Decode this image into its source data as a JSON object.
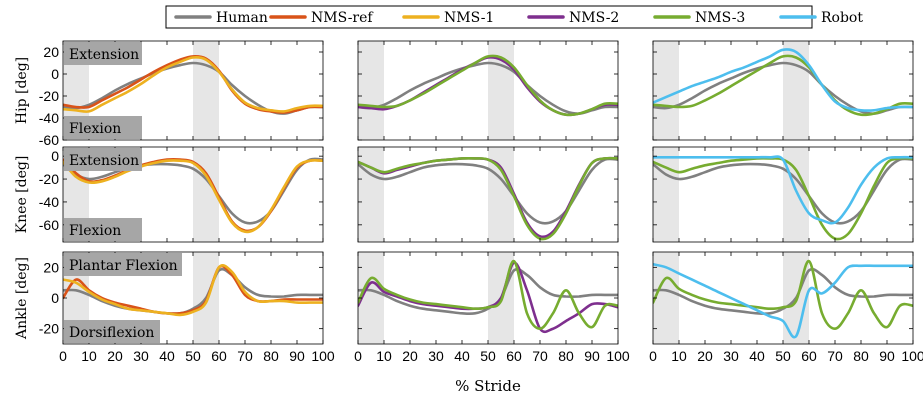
{
  "chart_data": {
    "type": "line",
    "xlabel": "% Stride",
    "x_ticks": [
      0,
      10,
      20,
      30,
      40,
      50,
      60,
      70,
      80,
      90,
      100
    ],
    "shaded_regions": [
      [
        0,
        10
      ],
      [
        50,
        60
      ]
    ],
    "legend": {
      "placement": "top-center",
      "entries": [
        {
          "name": "Human",
          "color": "#808080"
        },
        {
          "name": "NMS-ref",
          "color": "#D95319"
        },
        {
          "name": "NMS-1",
          "color": "#EDB120"
        },
        {
          "name": "NMS-2",
          "color": "#7E2F8E"
        },
        {
          "name": "NMS-3",
          "color": "#77AC30"
        },
        {
          "name": "Robot",
          "color": "#4DBEEE"
        }
      ]
    },
    "rows": [
      {
        "joint": "Hip",
        "ylabel": "Hip [deg]",
        "ylim": [
          -60,
          30
        ],
        "yticks": [
          20,
          0,
          -20,
          -40,
          -60
        ],
        "label_top": "Extension",
        "label_bottom": "Flexion"
      },
      {
        "joint": "Knee",
        "ylabel": "Knee [deg]",
        "ylim": [
          -75,
          8
        ],
        "yticks": [
          0,
          -20,
          -40,
          -60
        ],
        "label_top": "Extension",
        "label_bottom": "Flexion"
      },
      {
        "joint": "Ankle",
        "ylabel": "Ankle [deg]",
        "ylim": [
          -30,
          30
        ],
        "yticks": [
          20,
          0,
          -20
        ],
        "label_top": "Plantar Flexion",
        "label_bottom": "Dorsiflexion"
      }
    ],
    "x": [
      0,
      5,
      10,
      15,
      20,
      25,
      30,
      35,
      40,
      45,
      50,
      55,
      60,
      65,
      70,
      75,
      80,
      85,
      90,
      95,
      100
    ],
    "panels": [
      {
        "row": 0,
        "col": 0,
        "series": [
          {
            "name": "Human",
            "values": [
              -30,
              -31,
              -28,
              -22,
              -15,
              -9,
              -4,
              1,
              5,
              8,
              10,
              8,
              2,
              -10,
              -20,
              -28,
              -34,
              -36,
              -33,
              -30,
              -30
            ]
          },
          {
            "name": "NMS-ref",
            "values": [
              -28,
              -30,
              -30,
              -24,
              -18,
              -12,
              -5,
              2,
              8,
              13,
              16,
              14,
              3,
              -15,
              -27,
              -32,
              -34,
              -35,
              -33,
              -30,
              -30
            ]
          },
          {
            "name": "NMS-1",
            "values": [
              -32,
              -33,
              -34,
              -28,
              -22,
              -16,
              -9,
              -1,
              6,
              11,
              15,
              13,
              2,
              -14,
              -26,
              -31,
              -33,
              -34,
              -31,
              -29,
              -29
            ]
          }
        ]
      },
      {
        "row": 0,
        "col": 1,
        "series": [
          {
            "name": "Human",
            "values": [
              -30,
              -31,
              -28,
              -22,
              -15,
              -9,
              -4,
              1,
              5,
              8,
              10,
              8,
              2,
              -10,
              -20,
              -28,
              -34,
              -36,
              -33,
              -30,
              -30
            ]
          },
          {
            "name": "NMS-2",
            "values": [
              -30,
              -31,
              -32,
              -29,
              -24,
              -17,
              -10,
              -3,
              4,
              10,
              15,
              13,
              4,
              -12,
              -25,
              -33,
              -37,
              -36,
              -32,
              -28,
              -28
            ]
          },
          {
            "name": "NMS-3",
            "values": [
              -28,
              -29,
              -30,
              -29,
              -24,
              -18,
              -11,
              -4,
              3,
              10,
              16,
              15,
              6,
              -10,
              -24,
              -33,
              -37,
              -36,
              -32,
              -27,
              -27
            ]
          }
        ]
      },
      {
        "row": 0,
        "col": 2,
        "series": [
          {
            "name": "Human",
            "values": [
              -30,
              -31,
              -28,
              -22,
              -15,
              -9,
              -4,
              1,
              5,
              8,
              10,
              8,
              2,
              -10,
              -20,
              -28,
              -34,
              -36,
              -33,
              -30,
              -30
            ]
          },
          {
            "name": "NMS-3",
            "values": [
              -28,
              -29,
              -30,
              -29,
              -24,
              -18,
              -11,
              -4,
              3,
              10,
              16,
              15,
              6,
              -10,
              -24,
              -33,
              -37,
              -36,
              -32,
              -27,
              -27
            ]
          },
          {
            "name": "Robot",
            "values": [
              -26,
              -21,
              -16,
              -11,
              -7,
              -3,
              2,
              6,
              11,
              16,
              22,
              20,
              8,
              -10,
              -25,
              -31,
              -33,
              -33,
              -31,
              -30,
              -30
            ]
          }
        ]
      },
      {
        "row": 1,
        "col": 0,
        "series": [
          {
            "name": "Human",
            "values": [
              -7,
              -16,
              -20,
              -18,
              -14,
              -10,
              -8,
              -7,
              -7,
              -8,
              -11,
              -20,
              -35,
              -50,
              -58,
              -57,
              -48,
              -30,
              -12,
              -3,
              -3
            ]
          },
          {
            "name": "NMS-ref",
            "values": [
              -3,
              -15,
              -22,
              -21,
              -17,
              -12,
              -8,
              -5,
              -3,
              -3,
              -5,
              -15,
              -36,
              -57,
              -65,
              -62,
              -48,
              -28,
              -10,
              -4,
              -4
            ]
          },
          {
            "name": "NMS-1",
            "values": [
              -5,
              -18,
              -23,
              -22,
              -18,
              -13,
              -9,
              -6,
              -4,
              -4,
              -6,
              -17,
              -38,
              -58,
              -66,
              -62,
              -47,
              -27,
              -9,
              -4,
              -4
            ]
          }
        ]
      },
      {
        "row": 1,
        "col": 1,
        "series": [
          {
            "name": "Human",
            "values": [
              -7,
              -16,
              -20,
              -18,
              -14,
              -10,
              -8,
              -7,
              -7,
              -8,
              -11,
              -20,
              -35,
              -50,
              -58,
              -57,
              -48,
              -30,
              -12,
              -3,
              -3
            ]
          },
          {
            "name": "NMS-2",
            "values": [
              -5,
              -10,
              -15,
              -12,
              -9,
              -6,
              -4,
              -3,
              -2,
              -2,
              -3,
              -10,
              -33,
              -58,
              -70,
              -66,
              -48,
              -25,
              -6,
              -2,
              -2
            ]
          },
          {
            "name": "NMS-3",
            "values": [
              -5,
              -10,
              -14,
              -11,
              -8,
              -6,
              -4,
              -3,
              -2,
              -2,
              -3,
              -12,
              -35,
              -60,
              -72,
              -68,
              -50,
              -26,
              -6,
              -2,
              -2
            ]
          }
        ]
      },
      {
        "row": 1,
        "col": 2,
        "series": [
          {
            "name": "Human",
            "values": [
              -7,
              -16,
              -20,
              -18,
              -14,
              -10,
              -8,
              -7,
              -7,
              -8,
              -11,
              -20,
              -35,
              -50,
              -58,
              -57,
              -48,
              -30,
              -12,
              -3,
              -3
            ]
          },
          {
            "name": "NMS-3",
            "values": [
              -5,
              -10,
              -14,
              -11,
              -8,
              -6,
              -4,
              -3,
              -2,
              -2,
              -3,
              -12,
              -35,
              -60,
              -72,
              -68,
              -50,
              -26,
              -6,
              -2,
              -2
            ]
          },
          {
            "name": "Robot",
            "values": [
              -1,
              -1,
              -1,
              -1,
              -1,
              -1,
              -1,
              -1,
              -1,
              -1,
              -3,
              -30,
              -50,
              -56,
              -58,
              -45,
              -25,
              -10,
              -2,
              -1,
              -1
            ]
          }
        ]
      },
      {
        "row": 2,
        "col": 0,
        "series": [
          {
            "name": "Human",
            "values": [
              5,
              5,
              2,
              -2,
              -5,
              -7,
              -8,
              -9,
              -10,
              -10,
              -7,
              0,
              18,
              15,
              7,
              2,
              1,
              1,
              2,
              2,
              2
            ]
          },
          {
            "name": "NMS-ref",
            "values": [
              0,
              12,
              5,
              0,
              -3,
              -5,
              -7,
              -9,
              -10,
              -10,
              -8,
              -2,
              20,
              15,
              2,
              -2,
              -2,
              -1,
              -1,
              -1,
              -1
            ]
          },
          {
            "name": "NMS-1",
            "values": [
              12,
              10,
              4,
              -1,
              -4,
              -7,
              -8,
              -9,
              -10,
              -11,
              -9,
              -3,
              20,
              17,
              4,
              -2,
              -2,
              -2,
              -3,
              -3,
              -3
            ]
          }
        ]
      },
      {
        "row": 2,
        "col": 1,
        "series": [
          {
            "name": "Human",
            "values": [
              5,
              5,
              2,
              -2,
              -5,
              -7,
              -8,
              -9,
              -10,
              -10,
              -7,
              0,
              18,
              15,
              7,
              2,
              1,
              1,
              2,
              2,
              2
            ]
          },
          {
            "name": "NMS-2",
            "values": [
              -5,
              10,
              4,
              1,
              -2,
              -4,
              -5,
              -6,
              -7,
              -7,
              -6,
              0,
              23,
              5,
              -20,
              -20,
              -15,
              -10,
              -4,
              -4,
              -6
            ]
          },
          {
            "name": "NMS-3",
            "values": [
              -3,
              13,
              6,
              2,
              -1,
              -3,
              -4,
              -5,
              -6,
              -7,
              -6,
              -2,
              24,
              -10,
              -20,
              -10,
              5,
              -10,
              -19,
              -5,
              -5
            ]
          }
        ]
      },
      {
        "row": 2,
        "col": 2,
        "series": [
          {
            "name": "Human",
            "values": [
              5,
              5,
              2,
              -2,
              -5,
              -7,
              -8,
              -9,
              -10,
              -10,
              -7,
              0,
              18,
              15,
              7,
              2,
              1,
              1,
              2,
              2,
              2
            ]
          },
          {
            "name": "NMS-3",
            "values": [
              -3,
              13,
              6,
              2,
              -1,
              -3,
              -4,
              -5,
              -6,
              -7,
              -6,
              -2,
              24,
              -10,
              -20,
              -10,
              5,
              -10,
              -19,
              -5,
              -5
            ]
          },
          {
            "name": "Robot",
            "values": [
              22,
              20,
              16,
              12,
              8,
              4,
              0,
              -4,
              -8,
              -12,
              -15,
              -25,
              5,
              3,
              10,
              20,
              21,
              21,
              21,
              21,
              21
            ]
          }
        ]
      }
    ]
  }
}
